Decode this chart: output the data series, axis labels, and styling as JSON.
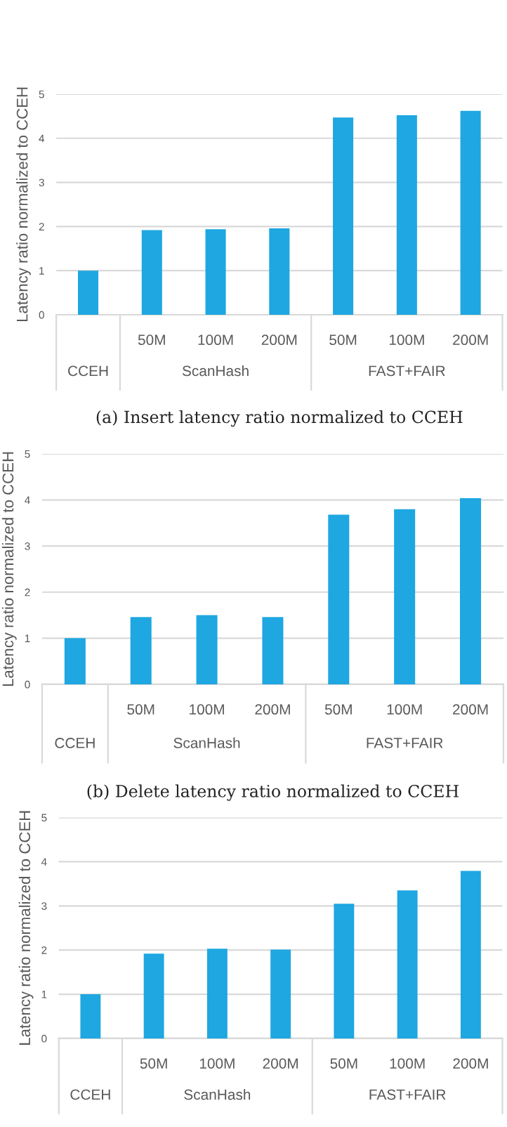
{
  "chart_data": [
    {
      "type": "bar",
      "title": "(a) Insert latency ratio normalized to CCEH",
      "ylabel": "Latency ratio normalized to CCEH",
      "categories": [
        null,
        "50M",
        "100M",
        "200M",
        "50M",
        "100M",
        "200M"
      ],
      "values": [
        1.0,
        1.92,
        1.94,
        1.96,
        4.47,
        4.52,
        4.62
      ],
      "color": "#1ea7e1",
      "ylim": [
        0,
        5
      ],
      "yticks": [
        0,
        1,
        2,
        3,
        4,
        5
      ],
      "grid": "y",
      "annotations": [
        "CCEH",
        "ScanHash",
        "FAST+FAIR"
      ]
    },
    {
      "type": "bar",
      "title": "(b) Delete latency ratio normalized to CCEH",
      "ylabel": "Latency ratio normalized to CCEH",
      "categories": [
        null,
        "50M",
        "100M",
        "200M",
        "50M",
        "100M",
        "200M"
      ],
      "values": [
        1.0,
        1.46,
        1.5,
        1.46,
        3.68,
        3.8,
        4.04
      ],
      "color": "#1ea7e1",
      "ylim": [
        0,
        5
      ],
      "yticks": [
        0,
        1,
        2,
        3,
        4,
        5
      ],
      "grid": "y",
      "annotations": [
        "CCEH",
        "ScanHash",
        "FAST+FAIR"
      ]
    },
    {
      "type": "bar",
      "ylabel": "Latency ratio normalized to CCEH",
      "categories": [
        null,
        "50M",
        "100M",
        "200M",
        "50M",
        "100M",
        "200M"
      ],
      "values": [
        1.0,
        1.92,
        2.03,
        2.01,
        3.05,
        3.35,
        3.79
      ],
      "color": "#1ea7e1",
      "ylim": [
        0,
        5
      ],
      "yticks": [
        0,
        1,
        2,
        3,
        4,
        5
      ],
      "grid": "y",
      "annotations": [
        "CCEH",
        "ScanHash",
        "FAST+FAIR"
      ]
    }
  ]
}
